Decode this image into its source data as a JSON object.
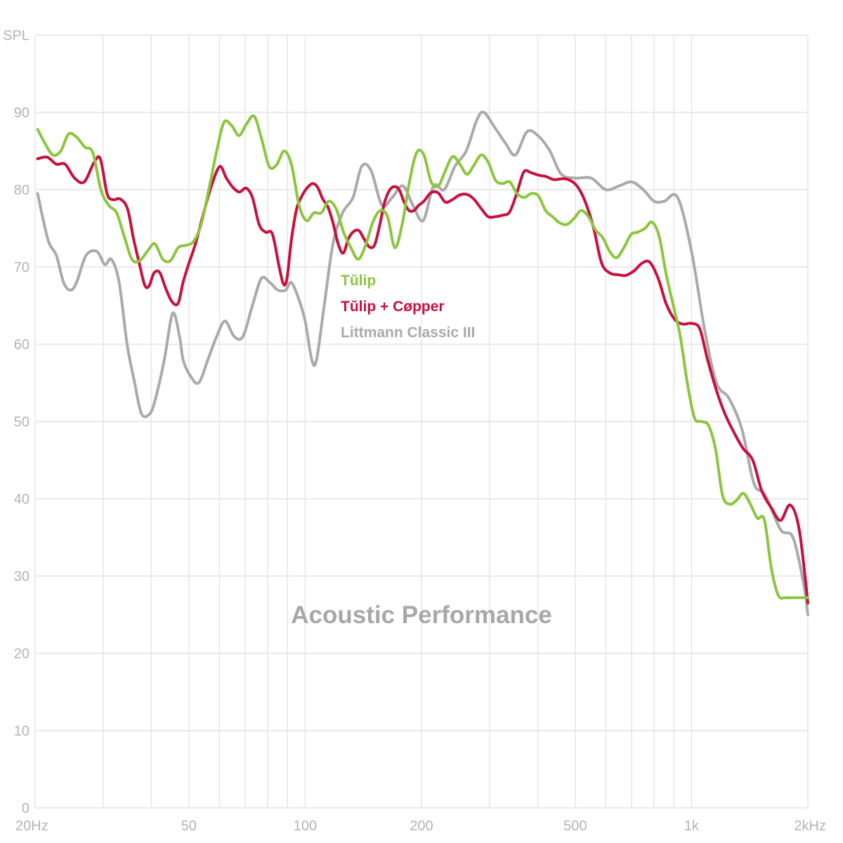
{
  "chart_data": {
    "type": "line",
    "title": "Acoustic Performance",
    "ylabel": "SPL",
    "xlabel": "",
    "x_scale": "log",
    "xlim": [
      20,
      2000
    ],
    "ylim": [
      0,
      100
    ],
    "grid": true,
    "legend_position": "center",
    "x_ticks": [
      {
        "value": 20,
        "label": "20Hz"
      },
      {
        "value": 50,
        "label": "50"
      },
      {
        "value": 100,
        "label": "100"
      },
      {
        "value": 200,
        "label": "200"
      },
      {
        "value": 500,
        "label": "500"
      },
      {
        "value": 1000,
        "label": "1k"
      },
      {
        "value": 2000,
        "label": "2kHz"
      }
    ],
    "x_grid": [
      20,
      30,
      40,
      50,
      60,
      70,
      80,
      90,
      100,
      200,
      300,
      400,
      500,
      600,
      700,
      800,
      900,
      1000,
      2000
    ],
    "y_ticks": [
      {
        "value": 0,
        "label": "0"
      },
      {
        "value": 10,
        "label": "10"
      },
      {
        "value": 20,
        "label": "20"
      },
      {
        "value": 30,
        "label": "30"
      },
      {
        "value": 40,
        "label": "40"
      },
      {
        "value": 50,
        "label": "50"
      },
      {
        "value": 60,
        "label": "60"
      },
      {
        "value": 70,
        "label": "70"
      },
      {
        "value": 80,
        "label": "80"
      },
      {
        "value": 90,
        "label": "90"
      },
      {
        "value": 100,
        "label": "SPL"
      }
    ],
    "series": [
      {
        "name": "Littmann Classic III",
        "color": "#aaaaaa",
        "x": [
          20.3,
          21.6,
          22.7,
          23.7,
          24.7,
          25.6,
          27.1,
          28.9,
          30.3,
          31.5,
          33,
          34.6,
          36.2,
          37.7,
          39.6,
          41,
          43.2,
          45.4,
          47.3,
          48.3,
          50.3,
          53,
          56,
          59,
          62,
          65.5,
          69,
          73,
          77,
          81,
          85,
          89,
          92,
          96,
          100,
          104,
          107,
          112,
          118,
          125,
          133,
          140,
          148,
          158,
          168,
          179,
          190,
          202,
          215,
          229,
          244,
          261,
          278,
          290,
          310,
          330,
          350,
          375,
          400,
          430,
          460,
          500,
          550,
          600,
          650,
          700,
          750,
          800,
          850,
          920,
          1000,
          1080,
          1160,
          1250,
          1350,
          1450,
          1550,
          1700,
          1830,
          1950,
          2000
        ],
        "y": [
          79.5,
          73.5,
          71.5,
          68,
          67,
          68,
          71.5,
          72,
          70.3,
          71,
          68,
          60,
          55,
          51,
          51,
          53,
          58,
          64,
          61,
          58,
          56,
          55,
          58,
          61,
          63,
          61,
          61,
          65,
          68.5,
          68,
          67,
          67,
          68,
          66,
          63,
          58,
          58,
          65,
          73,
          77,
          79,
          83,
          82.5,
          78,
          79,
          80.5,
          78,
          76,
          80.5,
          80,
          83,
          85,
          89,
          90,
          88,
          86,
          84.5,
          87.5,
          87,
          85,
          82,
          81.5,
          81.5,
          80,
          80.5,
          81,
          80,
          78.5,
          78.5,
          79,
          72,
          62,
          55,
          53,
          49,
          42,
          40.5,
          36,
          35,
          29,
          25
        ]
      },
      {
        "name": "Tŭlip + Cøpper",
        "color": "#c8103e",
        "x": [
          20.3,
          21.5,
          22.7,
          23.9,
          25.3,
          26.8,
          28.4,
          29.5,
          30.7,
          31.8,
          33.2,
          34.7,
          36,
          37.2,
          38.4,
          39.4,
          40.6,
          42,
          43.5,
          45.2,
          46.9,
          48.3,
          49.8,
          52,
          54.6,
          57.2,
          60.1,
          62.5,
          65,
          67.6,
          70.3,
          73,
          76,
          79,
          82.2,
          85.5,
          87.8,
          89.7,
          92.1,
          95,
          98.1,
          101.4,
          104.6,
          107.7,
          111,
          114.4,
          117.9,
          121.7,
          125.5,
          129.5,
          133.6,
          137.8,
          142.1,
          146.5,
          151.1,
          155.6,
          160.4,
          165.2,
          170.1,
          175.1,
          180.3,
          185.7,
          191.2,
          196.9,
          202.8,
          211.5,
          220.8,
          230.3,
          240.3,
          250.6,
          261.5,
          273,
          285,
          297.5,
          310.5,
          324.5,
          338,
          352.7,
          368,
          384,
          400,
          420,
          440,
          460,
          480,
          505,
          530,
          558,
          585,
          615,
          645,
          675,
          710,
          745,
          780,
          820,
          860,
          905,
          950,
          1000,
          1050,
          1100,
          1160,
          1220,
          1290,
          1360,
          1440,
          1520,
          1610,
          1700,
          1800,
          1900,
          2000
        ],
        "y": [
          84,
          84.2,
          83.3,
          83.3,
          81.5,
          81,
          83.5,
          84,
          79.5,
          78.7,
          78.8,
          77.5,
          73.5,
          70.5,
          67.7,
          67.5,
          69.2,
          69.3,
          67.3,
          65.5,
          65.3,
          68,
          70.2,
          73,
          77,
          80.5,
          83,
          81.5,
          80.3,
          79.7,
          80.2,
          79,
          75.5,
          74.5,
          74.3,
          70.2,
          67.8,
          68.5,
          73.5,
          77.5,
          79.2,
          80.3,
          80.8,
          80.3,
          78.8,
          77.8,
          75.8,
          73,
          71.8,
          73.7,
          74.6,
          74.7,
          73.6,
          72.6,
          72.8,
          75.2,
          78.3,
          79.9,
          80.4,
          80,
          78.4,
          77.3,
          77.3,
          78,
          78.5,
          79.6,
          79.6,
          78.4,
          78.7,
          79.3,
          79.4,
          78.8,
          77.6,
          76.5,
          76.5,
          76.7,
          77.1,
          79.5,
          82.3,
          82.2,
          81.9,
          81.7,
          81.3,
          81.4,
          81.3,
          80.5,
          78.5,
          75,
          70.5,
          69.2,
          69,
          68.9,
          69.5,
          70.5,
          70.6,
          68.5,
          65.2,
          63.2,
          62.6,
          62.7,
          62,
          58,
          54,
          51,
          48.5,
          46.5,
          45,
          41,
          38.8,
          37.2,
          39.2,
          36,
          26.5
        ]
      },
      {
        "name": "Tŭlip",
        "color": "#8cc63f",
        "x": [
          20.3,
          21.1,
          22.2,
          23.3,
          24.4,
          25.6,
          26.9,
          28.2,
          29.6,
          31,
          32.5,
          34,
          35.6,
          37.3,
          39,
          40.8,
          42.8,
          44.8,
          46.9,
          49.1,
          51.4,
          53.8,
          56.3,
          58.9,
          61.6,
          64.5,
          67.4,
          70.5,
          73.8,
          77.2,
          80.7,
          84.3,
          88.2,
          92.2,
          96.4,
          100.8,
          105.3,
          110.1,
          115.1,
          120.3,
          125.7,
          131.3,
          137.2,
          143.3,
          149.7,
          156.4,
          163.4,
          170.6,
          178.2,
          186.1,
          194.3,
          202.9,
          211.8,
          221.1,
          230.8,
          240.9,
          251.4,
          262.3,
          273.7,
          285.6,
          298,
          311,
          324.5,
          338.6,
          353.3,
          368.7,
          384.7,
          401.4,
          419,
          437,
          456,
          476,
          497,
          518,
          541,
          564,
          589,
          614,
          640,
          668,
          697,
          726,
          758,
          790,
          824,
          860,
          897,
          935,
          975,
          1017,
          1061,
          1106,
          1153,
          1202,
          1253,
          1307,
          1362,
          1420,
          1480,
          1543,
          1609,
          1677,
          1748,
          1822,
          1900,
          2000
        ],
        "y": [
          87.8,
          86.2,
          84.5,
          85,
          87.2,
          86.8,
          85.5,
          84.8,
          80,
          78,
          77,
          74,
          71,
          70.8,
          72,
          73,
          71,
          70.8,
          72.5,
          72.8,
          73.3,
          75.5,
          80,
          84.8,
          88.7,
          88.3,
          87,
          88.5,
          89.5,
          86.5,
          83,
          83.2,
          85,
          83.2,
          78,
          76,
          77,
          77,
          78.5,
          77.5,
          74.5,
          72.5,
          71,
          72.8,
          75.8,
          77.3,
          76.5,
          72.5,
          75.5,
          81,
          84.8,
          84.5,
          81,
          80.5,
          82.5,
          84.3,
          83.3,
          82,
          83.2,
          84.5,
          83.5,
          81.2,
          80.8,
          81,
          79.5,
          79,
          79.5,
          79.2,
          77.3,
          76.5,
          75.7,
          75.5,
          76.3,
          77.3,
          76.5,
          74.8,
          73.8,
          72,
          71.2,
          72.5,
          74.2,
          74.5,
          75,
          75.8,
          74,
          69,
          65,
          61,
          55,
          50.5,
          50,
          49.5,
          46.5,
          40.5,
          39.3,
          39.8,
          40.7,
          39.3,
          37.5,
          37.3,
          31,
          27.5,
          27.2,
          27.2,
          27.2,
          27.2
        ]
      }
    ],
    "legend": [
      {
        "label": "Tŭlip",
        "color": "#8cc63f"
      },
      {
        "label": "Tŭlip + Cøpper",
        "color": "#c8103e"
      },
      {
        "label": "Littmann Classic III",
        "color": "#aaaaaa"
      }
    ]
  }
}
